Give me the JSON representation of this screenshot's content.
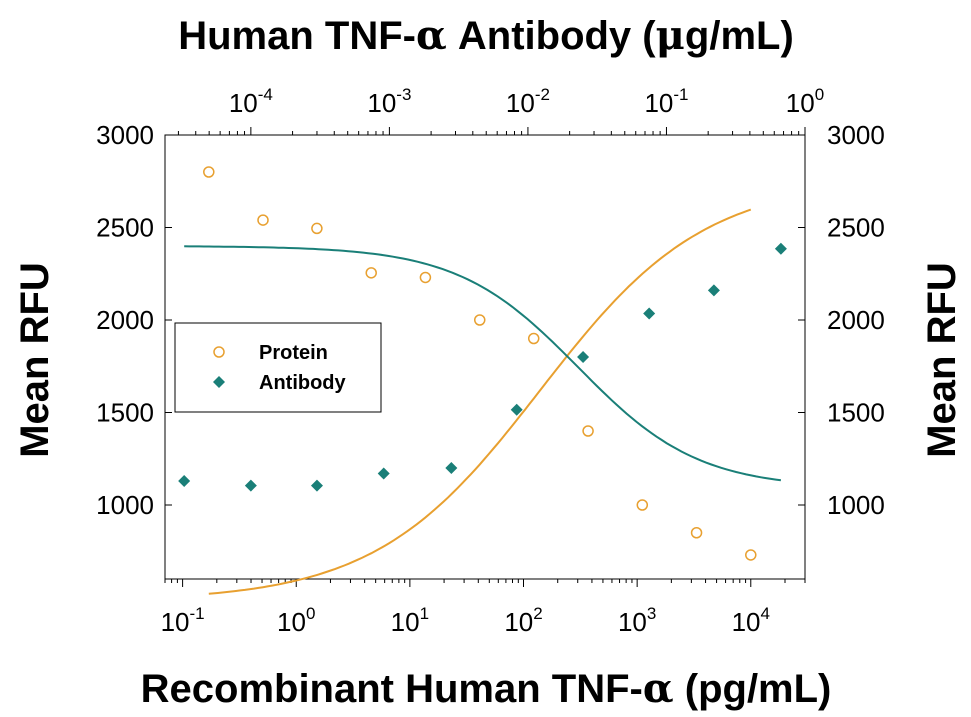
{
  "chart_data": {
    "type": "scatter",
    "title": "",
    "xlabel_bottom": {
      "prefix": "Recombinant Human TNF-",
      "greek": "α",
      "suffix": " (pg/mL)"
    },
    "xlabel_top": {
      "prefix": "Human TNF-",
      "greek": "α",
      "middle": " Antibody (",
      "mu": "μ",
      "suffix": "g/mL)"
    },
    "ylabel_left": "Mean RFU",
    "ylabel_right": "Mean RFU",
    "ylim": [
      600,
      3000
    ],
    "y_ticks": [
      1000,
      1500,
      2000,
      2500,
      3000
    ],
    "x_bottom_scale": "log",
    "x_bottom_range": [
      0.07,
      30000
    ],
    "x_bottom_ticks": [
      {
        "value": 0.1,
        "base": "10",
        "exp": "-1"
      },
      {
        "value": 1,
        "base": "10",
        "exp": "0"
      },
      {
        "value": 10,
        "base": "10",
        "exp": "1"
      },
      {
        "value": 100,
        "base": "10",
        "exp": "2"
      },
      {
        "value": 1000,
        "base": "10",
        "exp": "3"
      },
      {
        "value": 10000,
        "base": "10",
        "exp": "4"
      }
    ],
    "x_top_scale": "log",
    "x_top_range": [
      2.4e-05,
      1.0
    ],
    "x_top_ticks": [
      {
        "value": 0.0001,
        "base": "10",
        "exp": "-4"
      },
      {
        "value": 0.001,
        "base": "10",
        "exp": "-3"
      },
      {
        "value": 0.01,
        "base": "10",
        "exp": "-2"
      },
      {
        "value": 0.1,
        "base": "10",
        "exp": "-1"
      },
      {
        "value": 1,
        "base": "10",
        "exp": "0"
      }
    ],
    "legend": {
      "position": "center-left",
      "entries": [
        "Protein",
        "Antibody"
      ]
    },
    "grid": false,
    "series": [
      {
        "name": "Protein",
        "axis": "bottom",
        "marker": "open-circle",
        "color": "#E8A030",
        "x": [
          0.17,
          0.51,
          1.52,
          4.57,
          13.7,
          41.2,
          123,
          370,
          1110,
          3333,
          10000
        ],
        "y": [
          2800,
          2540,
          2495,
          2255,
          2230,
          2000,
          1900,
          1400,
          1000,
          850,
          730
        ],
        "fit": {
          "top": 2760,
          "bottom": 480,
          "ec50": 140,
          "hill": -0.6,
          "x_range": [
            0.17,
            10000
          ]
        }
      },
      {
        "name": "Antibody",
        "axis": "top",
        "marker": "filled-diamond",
        "color": "#1A7F78",
        "x": [
          3.3e-05,
          0.0001,
          0.0003,
          0.00091,
          0.0028,
          0.0083,
          0.025,
          0.075,
          0.22,
          0.67
        ],
        "y": [
          1130,
          1105,
          1105,
          1170,
          1200,
          1515,
          1800,
          2035,
          2160,
          2385
        ],
        "fit": {
          "top": 2400,
          "bottom": 1090,
          "ec50": 0.023,
          "hill": 1.0,
          "x_range": [
            3.3e-05,
            0.67
          ]
        }
      }
    ]
  }
}
